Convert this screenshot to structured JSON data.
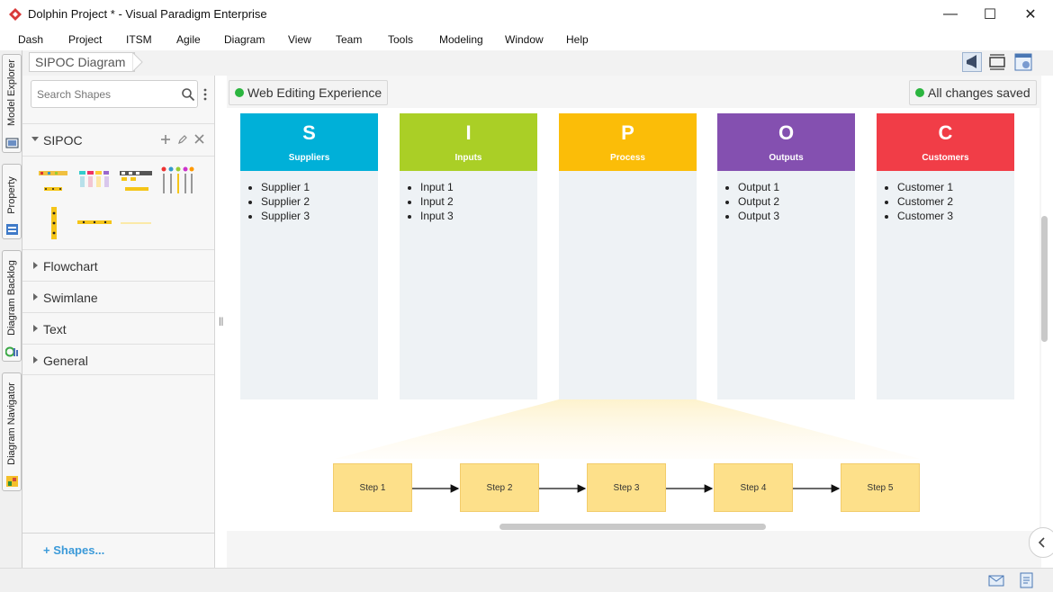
{
  "window": {
    "title": "Dolphin Project * - Visual Paradigm Enterprise",
    "controls": {
      "minimize": "—",
      "maximize": "☐",
      "close": "✕"
    }
  },
  "menu": [
    "Dash",
    "Project",
    "ITSM",
    "Agile",
    "Diagram",
    "View",
    "Team",
    "Tools",
    "Modeling",
    "Window",
    "Help"
  ],
  "side_tabs": [
    "Model Explorer",
    "Property",
    "Diagram Backlog",
    "Diagram Navigator"
  ],
  "breadcrumb": "SIPOC Diagram",
  "search": {
    "placeholder": "Search Shapes"
  },
  "groups": {
    "sipoc": "SIPOC",
    "flowchart": "Flowchart",
    "swimlane": "Swimlane",
    "text": "Text",
    "general": "General"
  },
  "shapes_link": "+ Shapes...",
  "status": {
    "web_editing": "Web Editing Experience",
    "saved": "All changes saved"
  },
  "colors": {
    "suppliers": "#00b0d8",
    "inputs": "#aacf26",
    "process": "#fbbd08",
    "outputs": "#8450b0",
    "customers": "#f13d47"
  },
  "sipoc": [
    {
      "letter": "S",
      "title": "Suppliers",
      "items": [
        "Supplier 1",
        "Supplier 2",
        "Supplier 3"
      ]
    },
    {
      "letter": "I",
      "title": "Inputs",
      "items": [
        "Input 1",
        "Input 2",
        "Input 3"
      ]
    },
    {
      "letter": "P",
      "title": "Process",
      "items": []
    },
    {
      "letter": "O",
      "title": "Outputs",
      "items": [
        "Output 1",
        "Output 2",
        "Output 3"
      ]
    },
    {
      "letter": "C",
      "title": "Customers",
      "items": [
        "Customer 1",
        "Customer 2",
        "Customer 3"
      ]
    }
  ],
  "steps": [
    "Step 1",
    "Step 2",
    "Step 3",
    "Step 4",
    "Step 5"
  ]
}
